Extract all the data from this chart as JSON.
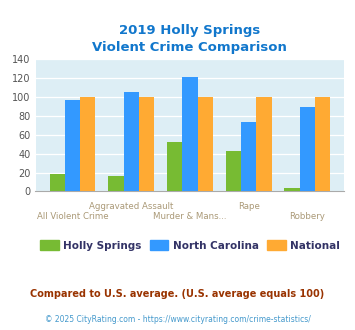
{
  "title_line1": "2019 Holly Springs",
  "title_line2": "Violent Crime Comparison",
  "holly_springs": [
    18,
    16,
    52,
    43,
    4
  ],
  "north_carolina": [
    97,
    105,
    121,
    74,
    89
  ],
  "national": [
    100,
    100,
    100,
    100,
    100
  ],
  "color_holly": "#77bb33",
  "color_nc": "#3399ff",
  "color_national": "#ffaa33",
  "ylim": [
    0,
    140
  ],
  "yticks": [
    0,
    20,
    40,
    60,
    80,
    100,
    120,
    140
  ],
  "bg_color": "#ddeef5",
  "title_color": "#1177cc",
  "xlabel_top": [
    "",
    "Aggravated Assault",
    "",
    "Rape",
    ""
  ],
  "xlabel_bot": [
    "All Violent Crime",
    "",
    "Murder & Mans...",
    "",
    "Robbery"
  ],
  "xlabel_color": "#aa9977",
  "legend_labels": [
    "Holly Springs",
    "North Carolina",
    "National"
  ],
  "legend_text_color": "#333366",
  "footer_text": "Compared to U.S. average. (U.S. average equals 100)",
  "footer_color": "#993300",
  "credit_text": "© 2025 CityRating.com - https://www.cityrating.com/crime-statistics/",
  "credit_color": "#4499cc"
}
